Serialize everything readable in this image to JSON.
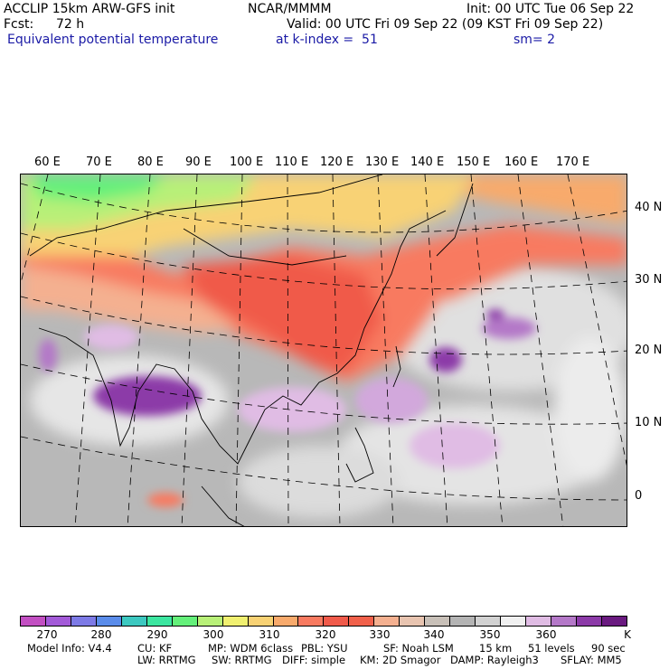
{
  "header": {
    "model": "ACCLIP 15km ARW-GFS init",
    "org": "NCAR/MMMM",
    "init": "Init: 00 UTC Tue 06 Sep 22",
    "fcst_label": "Fcst:",
    "fcst_value": "72 h",
    "valid": "Valid: 00 UTC Fri 09 Sep 22 (09 KST Fri 09 Sep 22)",
    "field": "Equivalent potential temperature",
    "level": "at k-index =  51",
    "smooth": "sm= 2"
  },
  "map": {
    "lon_labels": [
      "60 E",
      "70 E",
      "80 E",
      "90 E",
      "100 E",
      "110 E",
      "120 E",
      "130 E",
      "140 E",
      "150 E",
      "160 E",
      "170 E"
    ],
    "lat_labels": [
      "40 N",
      "30 N",
      "20 N",
      "10 N",
      "0"
    ]
  },
  "colorbar": {
    "colors": [
      "#c24fc2",
      "#a35ad8",
      "#7d7ae6",
      "#5a8cea",
      "#3cc8c0",
      "#3ce6a0",
      "#64f07a",
      "#b8f078",
      "#f0f070",
      "#f8d274",
      "#f8aa6c",
      "#f87a60",
      "#f05a4a",
      "#f0604a",
      "#f4b090",
      "#e8c4b0",
      "#c8c0b8",
      "#b4b4b4",
      "#d2d2d2",
      "#f0f0f0",
      "#e0bce4",
      "#b478c8",
      "#8c3aa8",
      "#6a1a80"
    ],
    "tick_labels": [
      "270",
      "280",
      "290",
      "300",
      "310",
      "320",
      "330",
      "340",
      "350",
      "360"
    ],
    "unit": "K"
  },
  "footer": {
    "line1": [
      "Model Info: V4.4",
      "CU: KF",
      "MP: WDM 6class",
      "PBL: YSU",
      "SF: Noah LSM",
      "15 km",
      "51 levels",
      "90 sec"
    ],
    "line2": [
      "LW: RRTMG",
      "SW: RRTMG",
      "DIFF: simple",
      "KM: 2D Smagor",
      "DAMP: Rayleigh3",
      "SFLAY: MM5"
    ]
  }
}
